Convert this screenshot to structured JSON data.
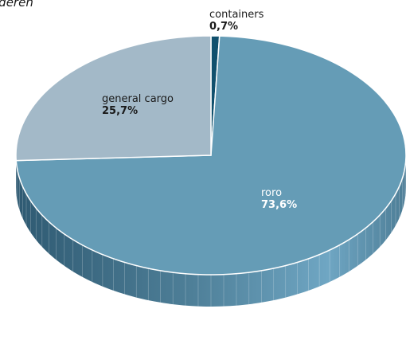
{
  "title_fragment": "ideren",
  "chart_data": {
    "type": "pie",
    "style": "3d",
    "categories": [
      "containers",
      "roro",
      "general cargo"
    ],
    "values": [
      0.7,
      73.6,
      25.7
    ],
    "value_labels": [
      "0,7%",
      "73,6%",
      "25,7%"
    ],
    "colors": {
      "containers": "#10506d",
      "roro": "#659cb6",
      "general cargo": "#a3b9c8",
      "roro_side": "#4e7f98",
      "roro_side_dark": "#2f5a72",
      "roro_side_light": "#7fb8d6"
    },
    "legend": "none"
  }
}
